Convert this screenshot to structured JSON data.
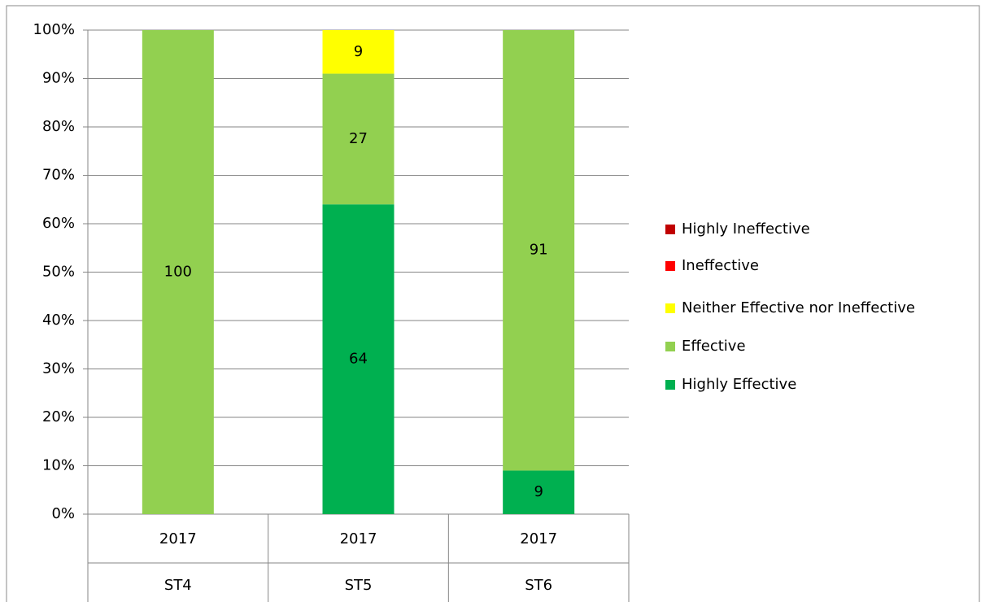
{
  "chart_data": {
    "type": "bar",
    "stacked": true,
    "categories": [
      "2017",
      "2017",
      "2017"
    ],
    "groups": [
      "ST4",
      "ST5",
      "ST6"
    ],
    "series": [
      {
        "name": "Highly Effective",
        "color": "#00b050",
        "values": [
          0,
          64,
          9
        ]
      },
      {
        "name": "Effective",
        "color": "#92d050",
        "values": [
          100,
          27,
          91
        ]
      },
      {
        "name": "Neither Effective nor Ineffective",
        "color": "#ffff00",
        "values": [
          0,
          9,
          0
        ]
      },
      {
        "name": "Ineffective",
        "color": "#ff0000",
        "values": [
          0,
          0,
          0
        ]
      },
      {
        "name": "Highly Ineffective",
        "color": "#c00000",
        "values": [
          0,
          0,
          0
        ]
      }
    ],
    "ylim": [
      0,
      100
    ],
    "yticks": [
      {
        "value": 0,
        "label": "0%"
      },
      {
        "value": 10,
        "label": "10%"
      },
      {
        "value": 20,
        "label": "20%"
      },
      {
        "value": 30,
        "label": "30%"
      },
      {
        "value": 40,
        "label": "40%"
      },
      {
        "value": 50,
        "label": "50%"
      },
      {
        "value": 60,
        "label": "60%"
      },
      {
        "value": 70,
        "label": "70%"
      },
      {
        "value": 80,
        "label": "80%"
      },
      {
        "value": 90,
        "label": "90%"
      },
      {
        "value": 100,
        "label": "100%"
      }
    ],
    "grid": true,
    "legend": "right"
  }
}
